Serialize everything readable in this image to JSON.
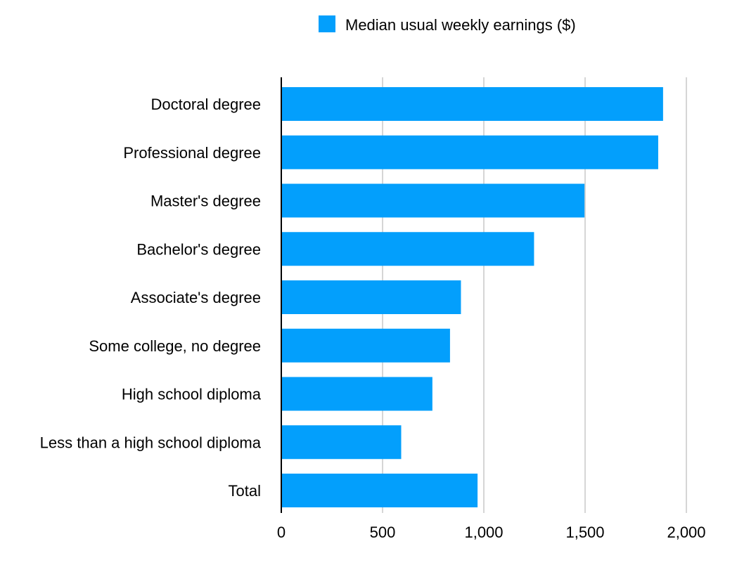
{
  "chart_data": {
    "type": "bar",
    "orientation": "horizontal",
    "categories": [
      "Doctoral degree",
      "Professional degree",
      "Master's degree",
      "Bachelor's degree",
      "Associate's degree",
      "Some college, no degree",
      "High school diploma",
      "Less than a high school diploma",
      "Total"
    ],
    "series": [
      {
        "name": "Median usual weekly earnings ($)",
        "color": "#039ffc",
        "values": [
          1885,
          1861,
          1497,
          1248,
          887,
          833,
          746,
          592,
          969
        ]
      }
    ],
    "xlim": [
      0,
      2000
    ],
    "xticks": [
      0,
      500,
      1000,
      1500,
      2000
    ],
    "xtick_labels": [
      "0",
      "500",
      "1,000",
      "1,500",
      "2,000"
    ],
    "grid": true,
    "legend_position": "top-center"
  }
}
